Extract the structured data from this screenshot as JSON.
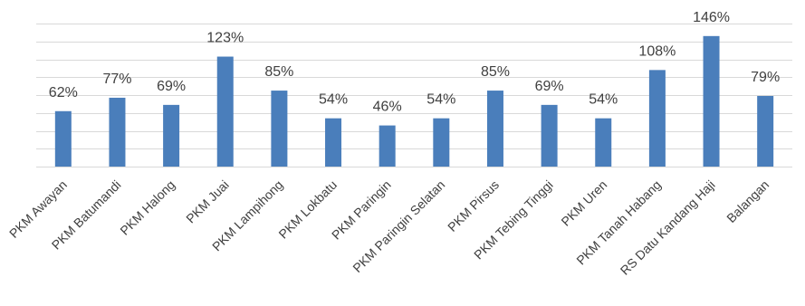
{
  "chart_data": {
    "type": "bar",
    "categories": [
      "PKM Awayan",
      "PKM Batumandi",
      "PKM Halong",
      "PKM Juai",
      "PKM Lampihong",
      "PKM Lokbatu",
      "PKM Paringin",
      "PKM Paringin Selatan",
      "PKM Pirsus",
      "PKM Tebing Tinggi",
      "PKM Uren",
      "PKM Tanah Habang",
      "RS Datu Kandang Haji",
      "Balangan"
    ],
    "values": [
      62,
      77,
      69,
      123,
      85,
      54,
      46,
      54,
      85,
      69,
      54,
      108,
      146,
      79
    ],
    "value_labels": [
      "62%",
      "77%",
      "69%",
      "123%",
      "85%",
      "54%",
      "46%",
      "54%",
      "85%",
      "69%",
      "54%",
      "108%",
      "146%",
      "79%"
    ],
    "ylim": [
      0,
      160
    ],
    "y_grid_step": 20,
    "grid": true,
    "legend": "none",
    "bar_color": "#4a7ebb",
    "gridline_color": "#d9d9d9"
  }
}
